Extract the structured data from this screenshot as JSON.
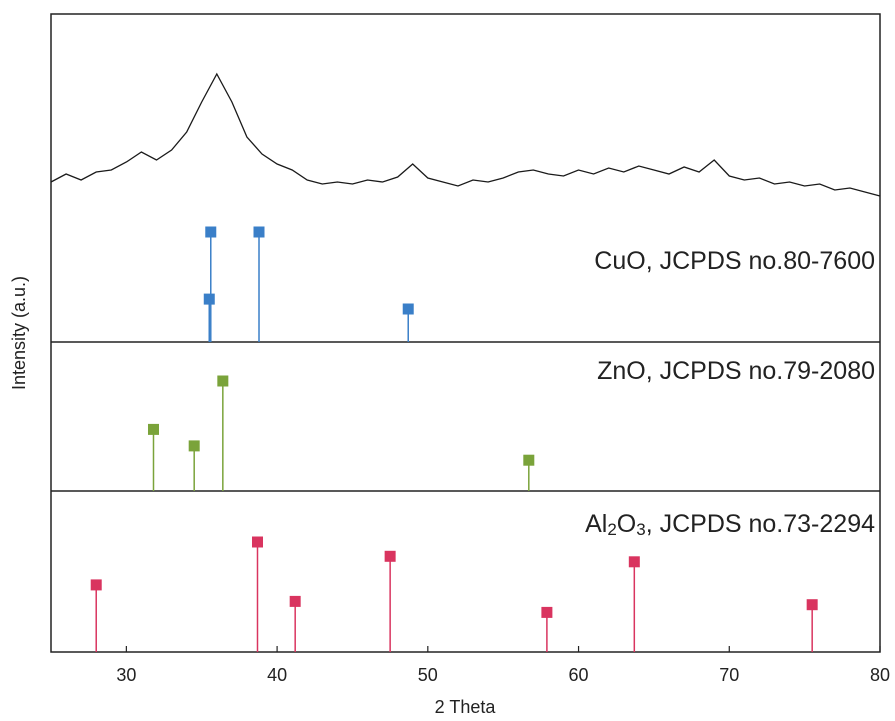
{
  "chart_data": {
    "type": "line",
    "x_label": "2 Theta",
    "y_label": "Intensity (a.u.)",
    "xlim": [
      25,
      80
    ],
    "xticks": [
      30,
      40,
      50,
      60,
      70,
      80
    ],
    "ylim": [
      0,
      200
    ],
    "color": "#1a1a1a",
    "x": [
      25,
      26,
      27,
      28,
      29,
      30,
      31,
      32,
      33,
      34,
      35,
      36,
      37,
      38,
      39,
      40,
      41,
      42,
      43,
      44,
      45,
      46,
      47,
      48,
      49,
      50,
      51,
      52,
      53,
      54,
      55,
      56,
      57,
      58,
      59,
      60,
      61,
      62,
      63,
      64,
      65,
      66,
      67,
      68,
      69,
      70,
      71,
      72,
      73,
      74,
      75,
      76,
      77,
      78,
      79,
      80
    ],
    "values": [
      40,
      48,
      42,
      50,
      52,
      60,
      70,
      62,
      72,
      90,
      120,
      148,
      120,
      85,
      68,
      58,
      52,
      42,
      38,
      40,
      38,
      42,
      40,
      45,
      58,
      44,
      40,
      36,
      42,
      40,
      44,
      50,
      52,
      48,
      46,
      52,
      48,
      54,
      50,
      56,
      52,
      48,
      55,
      50,
      62,
      46,
      42,
      44,
      38,
      40,
      36,
      38,
      32,
      34,
      30,
      26
    ],
    "references": [
      {
        "type": "stem",
        "name": "CuO, JCPDS no.80-7600",
        "color": "#3a7fc8",
        "ylim": [
          0,
          100
        ],
        "x": [
          35.5,
          35.6,
          38.8,
          48.7
        ],
        "values": [
          39,
          100,
          100,
          30
        ]
      },
      {
        "type": "stem",
        "name": "ZnO, JCPDS no.79-2080",
        "color": "#7aa33a",
        "ylim": [
          0,
          100
        ],
        "x": [
          31.8,
          34.5,
          36.4,
          56.7
        ],
        "values": [
          56,
          41,
          100,
          28
        ]
      },
      {
        "type": "stem",
        "name": "Al2O3, JCPDS no.73-2294",
        "color": "#d9345f",
        "ylim": [
          0,
          100
        ],
        "x": [
          28.0,
          38.7,
          41.2,
          47.5,
          57.9,
          63.7,
          75.5
        ],
        "values": [
          61,
          100,
          46,
          87,
          36,
          82,
          43
        ]
      }
    ]
  }
}
